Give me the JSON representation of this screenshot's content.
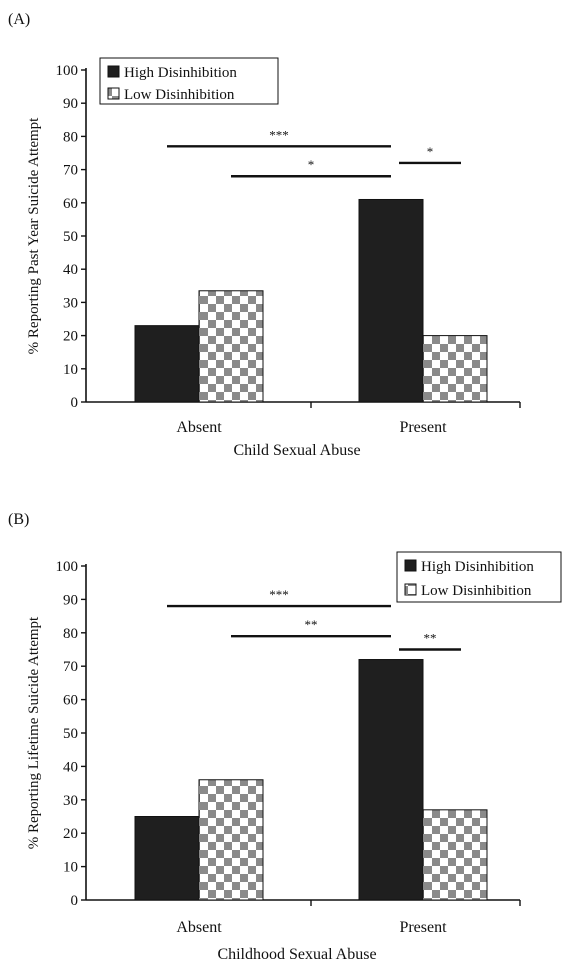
{
  "chart_data": [
    {
      "type": "bar",
      "panel_label": "(A)",
      "title": "",
      "xlabel": "Child Sexual Abuse",
      "ylabel": "% Reporting Past Year Suicide Attempt",
      "ylim": [
        0,
        100
      ],
      "yticks": [
        "0",
        "10",
        "20",
        "30",
        "40",
        "50",
        "60",
        "70",
        "80",
        "90",
        "100"
      ],
      "categories": [
        "Absent",
        "Present"
      ],
      "legend_position": "top-left",
      "series": [
        {
          "name": "High Disinhibition",
          "values": [
            23,
            61
          ],
          "color": "#1f1f1f",
          "pattern": "solid"
        },
        {
          "name": "Low Disinhibition",
          "values": [
            33.5,
            20
          ],
          "color": "#ffffff",
          "pattern": "checkerboard"
        }
      ],
      "significance": [
        {
          "label": "***",
          "from": "Absent High Disinhibition",
          "to": "Present High Disinhibition",
          "y": 77
        },
        {
          "label": "*",
          "from": "Absent Low Disinhibition",
          "to": "Present High Disinhibition",
          "y": 68
        },
        {
          "label": "*",
          "from": "Present High Disinhibition",
          "to": "Present Low Disinhibition",
          "y": 72
        }
      ]
    },
    {
      "type": "bar",
      "panel_label": "(B)",
      "title": "",
      "xlabel": "Childhood Sexual Abuse",
      "ylabel": "% Reporting Lifetime Suicide Attempt",
      "ylim": [
        0,
        100
      ],
      "yticks": [
        "0",
        "10",
        "20",
        "30",
        "40",
        "50",
        "60",
        "70",
        "80",
        "90",
        "100"
      ],
      "categories": [
        "Absent",
        "Present"
      ],
      "legend_position": "top-right",
      "series": [
        {
          "name": "High Disinhibition",
          "values": [
            25,
            72
          ],
          "color": "#1f1f1f",
          "pattern": "solid"
        },
        {
          "name": "Low Disinhibition",
          "values": [
            36,
            27
          ],
          "color": "#ffffff",
          "pattern": "checkerboard"
        }
      ],
      "significance": [
        {
          "label": "***",
          "from": "Absent High Disinhibition",
          "to": "Present High Disinhibition",
          "y": 88
        },
        {
          "label": "**",
          "from": "Absent Low Disinhibition",
          "to": "Present High Disinhibition",
          "y": 79
        },
        {
          "label": "**",
          "from": "Present High Disinhibition",
          "to": "Present Low Disinhibition",
          "y": 75
        }
      ]
    }
  ]
}
